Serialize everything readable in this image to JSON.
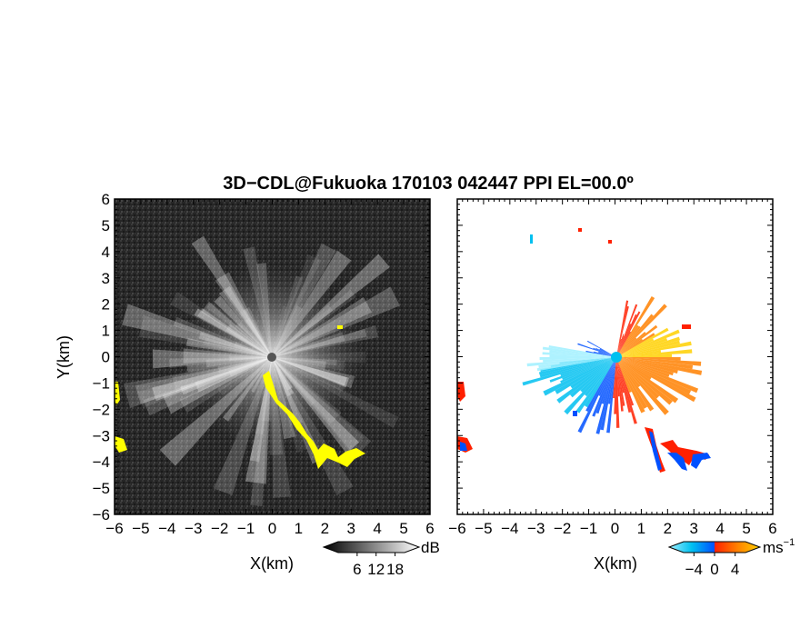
{
  "title": "3D−CDL@Fukuoka 170103 042447 PPI EL=00.0º",
  "chart_data": [
    {
      "type": "heatmap",
      "panel": "left",
      "quantity": "reflectivity (SNR)",
      "xlabel": "X(km)",
      "ylabel": "Y(km)",
      "xlim": [
        -6,
        6
      ],
      "ylim": [
        -6,
        6
      ],
      "xticks": [
        "−6",
        "−5",
        "−4",
        "−3",
        "−2",
        "−1",
        "0",
        "1",
        "2",
        "3",
        "4",
        "5",
        "6"
      ],
      "yticks": [
        "6",
        "5",
        "4",
        "3",
        "2",
        "1",
        "0",
        "−1",
        "−2",
        "−3",
        "−4",
        "−5",
        "−6"
      ],
      "colorbar": {
        "unit": "dB",
        "ticks": [
          "6",
          "12",
          "18"
        ],
        "tick_values": [
          6,
          12,
          18
        ],
        "range": [
          0,
          21
        ],
        "colors": [
          "#000000",
          "#ffffff"
        ]
      },
      "background_color": "#2a2a2a",
      "highlight_color": "#ffff00",
      "grid": false
    },
    {
      "type": "heatmap",
      "panel": "right",
      "quantity": "radial velocity",
      "xlabel": "X(km)",
      "ylabel": "",
      "xlim": [
        -6,
        6
      ],
      "ylim": [
        -6,
        6
      ],
      "xticks": [
        "−6",
        "−5",
        "−4",
        "−3",
        "−2",
        "−1",
        "0",
        "1",
        "2",
        "3",
        "4",
        "5",
        "6"
      ],
      "colorbar": {
        "unit": "ms",
        "unit_exp": "−1",
        "ticks": [
          "−4",
          "0",
          "4"
        ],
        "tick_values": [
          -4,
          0,
          4
        ],
        "range": [
          -6,
          6
        ],
        "colors": [
          "#a0f0ff",
          "#00c0f0",
          "#0050ff",
          "#ff2000",
          "#ff8000",
          "#ffd000"
        ]
      },
      "grid": false
    }
  ]
}
